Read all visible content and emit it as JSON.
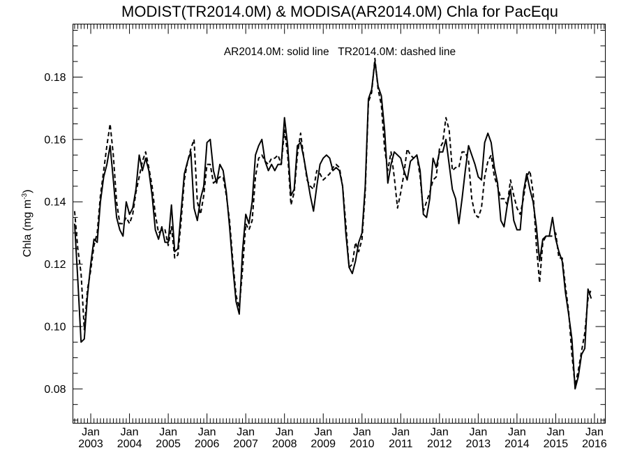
{
  "chart_data": {
    "type": "line",
    "title": "MODIST(TR2014.0M) & MODISA(AR2014.0M)  Chla for PacEqu",
    "annotation": "AR2014.0M: solid line   TR2014.0M: dashed line",
    "ylabel_main": "Chla (mg m",
    "ylabel_sup": "-3",
    "ylabel_end": ")",
    "xlabel": "",
    "ylim": [
      0.069,
      0.197
    ],
    "xlim": [
      2002.54,
      2016.28
    ],
    "grid": false,
    "y_ticks": [
      0.08,
      0.1,
      0.12,
      0.14,
      0.16,
      0.18
    ],
    "y_tick_labels": [
      "0.08",
      "0.10",
      "0.12",
      "0.14",
      "0.16",
      "0.18"
    ],
    "x_tick_month": "Jan",
    "x_tick_years": [
      "2003",
      "2004",
      "2005",
      "2006",
      "2007",
      "2008",
      "2009",
      "2010",
      "2011",
      "2012",
      "2013",
      "2014",
      "2015",
      "2016"
    ],
    "x_start": "2002-08",
    "time_step": "monthly",
    "series": [
      {
        "name": "AR2014.0M",
        "style": "solid",
        "color": "#000000",
        "values": [
          0.133,
          0.115,
          0.095,
          0.096,
          0.11,
          0.12,
          0.128,
          0.127,
          0.14,
          0.148,
          0.152,
          0.158,
          0.147,
          0.135,
          0.131,
          0.129,
          0.14,
          0.136,
          0.138,
          0.144,
          0.155,
          0.15,
          0.154,
          0.15,
          0.142,
          0.131,
          0.128,
          0.132,
          0.127,
          0.127,
          0.139,
          0.124,
          0.125,
          0.137,
          0.149,
          0.153,
          0.156,
          0.138,
          0.134,
          0.141,
          0.145,
          0.159,
          0.16,
          0.15,
          0.146,
          0.152,
          0.15,
          0.143,
          0.132,
          0.119,
          0.108,
          0.104,
          0.124,
          0.136,
          0.133,
          0.14,
          0.155,
          0.158,
          0.16,
          0.153,
          0.15,
          0.152,
          0.15,
          0.152,
          0.152,
          0.167,
          0.158,
          0.142,
          0.144,
          0.158,
          0.159,
          0.154,
          0.148,
          0.142,
          0.137,
          0.145,
          0.152,
          0.154,
          0.155,
          0.154,
          0.15,
          0.151,
          0.15,
          0.145,
          0.13,
          0.119,
          0.117,
          0.121,
          0.127,
          0.13,
          0.145,
          0.173,
          0.176,
          0.185,
          0.177,
          0.174,
          0.163,
          0.146,
          0.152,
          0.156,
          0.155,
          0.154,
          0.15,
          0.147,
          0.153,
          0.154,
          0.155,
          0.15,
          0.136,
          0.135,
          0.141,
          0.154,
          0.151,
          0.156,
          0.156,
          0.16,
          0.152,
          0.144,
          0.141,
          0.133,
          0.141,
          0.15,
          0.158,
          0.155,
          0.152,
          0.148,
          0.147,
          0.159,
          0.162,
          0.159,
          0.151,
          0.146,
          0.134,
          0.132,
          0.139,
          0.144,
          0.134,
          0.131,
          0.131,
          0.143,
          0.149,
          0.144,
          0.14,
          0.132,
          0.121,
          0.128,
          0.129,
          0.129,
          0.135,
          0.128,
          0.124,
          0.121,
          0.111,
          0.104,
          0.096,
          0.08,
          0.084,
          0.091,
          0.093,
          0.112,
          0.109
        ]
      },
      {
        "name": "TR2014.0M",
        "style": "dashed",
        "color": "#000000",
        "values": [
          0.137,
          0.125,
          0.117,
          0.099,
          0.112,
          0.118,
          0.126,
          0.13,
          0.142,
          0.15,
          0.158,
          0.165,
          0.155,
          0.14,
          0.133,
          0.133,
          0.135,
          0.133,
          0.136,
          0.143,
          0.148,
          0.153,
          0.156,
          0.151,
          0.145,
          0.136,
          0.13,
          0.131,
          0.131,
          0.126,
          0.132,
          0.122,
          0.123,
          0.134,
          0.147,
          0.153,
          0.157,
          0.16,
          0.14,
          0.136,
          0.142,
          0.152,
          0.152,
          0.146,
          0.147,
          0.148,
          0.148,
          0.142,
          0.134,
          0.121,
          0.11,
          0.106,
          0.118,
          0.133,
          0.131,
          0.134,
          0.148,
          0.154,
          0.155,
          0.153,
          0.152,
          0.154,
          0.154,
          0.155,
          0.152,
          0.163,
          0.155,
          0.139,
          0.143,
          0.155,
          0.162,
          0.154,
          0.147,
          0.145,
          0.144,
          0.15,
          0.149,
          0.147,
          0.148,
          0.149,
          0.151,
          0.152,
          0.151,
          0.145,
          0.133,
          0.119,
          0.12,
          0.127,
          0.124,
          0.128,
          0.143,
          0.172,
          0.175,
          0.186,
          0.176,
          0.171,
          0.157,
          0.15,
          0.156,
          0.148,
          0.138,
          0.143,
          0.149,
          0.157,
          0.155,
          0.154,
          0.155,
          0.148,
          0.137,
          0.14,
          0.143,
          0.147,
          0.148,
          0.157,
          0.159,
          0.167,
          0.163,
          0.15,
          0.151,
          0.151,
          0.156,
          0.156,
          0.153,
          0.141,
          0.136,
          0.135,
          0.138,
          0.148,
          0.153,
          0.155,
          0.148,
          0.145,
          0.141,
          0.141,
          0.139,
          0.147,
          0.142,
          0.138,
          0.136,
          0.141,
          0.148,
          0.15,
          0.143,
          0.126,
          0.114,
          0.127,
          0.129,
          0.129,
          0.129,
          0.13,
          0.122,
          0.122,
          0.113,
          0.105,
          0.091,
          0.081,
          0.086,
          0.092,
          0.098,
          0.109,
          0.112
        ]
      }
    ]
  }
}
